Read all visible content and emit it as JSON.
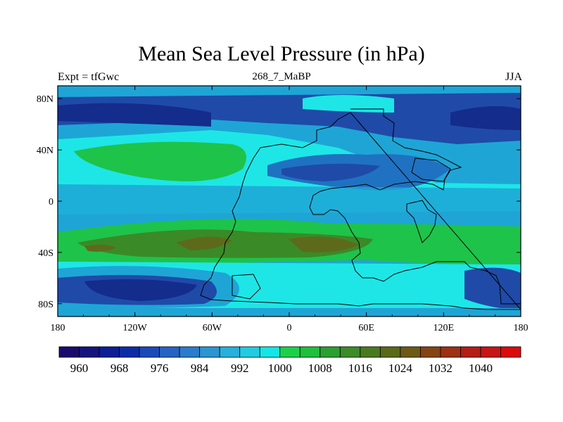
{
  "title": "Mean Sea Level Pressure (in hPa)",
  "subtitle_left": "Expt = tfGwc",
  "subtitle_center": "268_7_MaBP",
  "subtitle_right": "JJA",
  "colors": {
    "band_deep": "#1a1d8c",
    "band_dark": "#1f4aa8",
    "band_mid": "#1c72c1",
    "band_light": "#1ea5d6",
    "band_cyan": "#1ee6e6",
    "band_green": "#1ec34a",
    "band_olive": "#3a8a28",
    "band_brown": "#5d6a1c"
  },
  "chart_data": {
    "type": "heatmap",
    "title": "Mean Sea Level Pressure (in hPa)",
    "x_axis": {
      "range": [
        -180,
        180
      ],
      "tick_values": [
        -180,
        -120,
        -60,
        0,
        60,
        120,
        180
      ],
      "tick_labels": [
        "180",
        "120W",
        "60W",
        "0",
        "60E",
        "120E",
        "180"
      ]
    },
    "y_axis": {
      "range": [
        -90,
        90
      ],
      "tick_values": [
        80,
        40,
        0,
        -40,
        -80
      ],
      "tick_labels": [
        "80N",
        "40N",
        "0",
        "40S",
        "80S"
      ]
    },
    "colorbar": {
      "levels": [
        956,
        960,
        964,
        968,
        972,
        976,
        980,
        984,
        988,
        992,
        996,
        1000,
        1004,
        1008,
        1012,
        1016,
        1020,
        1024,
        1028,
        1032,
        1036,
        1040,
        1044
      ],
      "colors": [
        "#1a0a6e",
        "#14147f",
        "#0d1e96",
        "#0b2ca8",
        "#1a4aba",
        "#2563c4",
        "#2a7ccc",
        "#2a96d4",
        "#26b0dc",
        "#20cce4",
        "#14e6e6",
        "#1ad24a",
        "#1ec03c",
        "#2aa030",
        "#3c8c28",
        "#4a7a20",
        "#5a6a1a",
        "#6e5a16",
        "#864414",
        "#9e3014",
        "#b41e14",
        "#c81414",
        "#dc0a0a"
      ],
      "labels": [
        "960",
        "968",
        "976",
        "984",
        "992",
        "1000",
        "1008",
        "1016",
        "1024",
        "1032",
        "1040"
      ],
      "label_values": [
        960,
        968,
        976,
        984,
        992,
        1000,
        1008,
        1016,
        1024,
        1032,
        1040
      ]
    },
    "zonal_bands_hPa": [
      {
        "lat": [
          75,
          90
        ],
        "value": 990
      },
      {
        "lat": [
          45,
          75
        ],
        "value": 982
      },
      {
        "lat": [
          -10,
          45
        ],
        "value": 996
      },
      {
        "lat": [
          -45,
          -10
        ],
        "value": 1010
      },
      {
        "lat": [
          -60,
          -45
        ],
        "value": 998
      },
      {
        "lat": [
          -80,
          -60
        ],
        "value": 972
      },
      {
        "lat": [
          -90,
          -80
        ],
        "value": 990
      }
    ]
  }
}
